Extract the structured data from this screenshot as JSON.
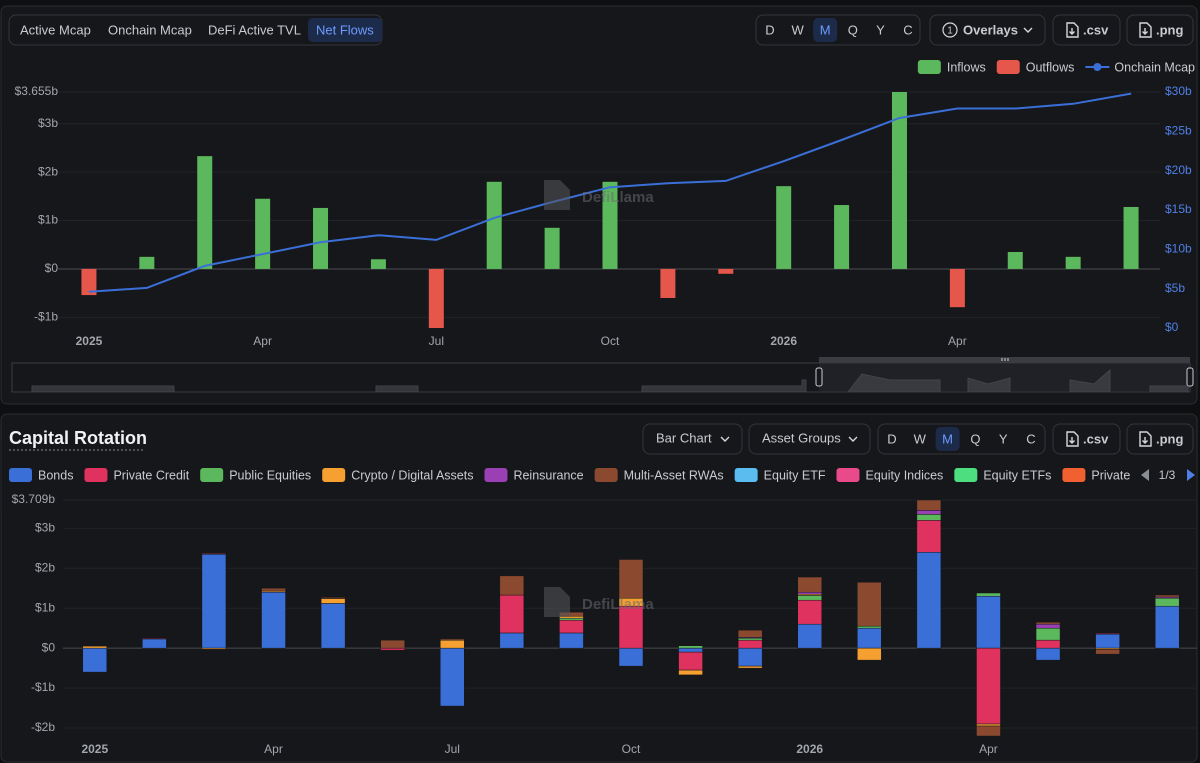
{
  "top_panel": {
    "tabs": [
      "Active Mcap",
      "Onchain Mcap",
      "DeFi Active TVL",
      "Net Flows"
    ],
    "active_tab": 3,
    "periods": [
      "D",
      "W",
      "M",
      "Q",
      "Y",
      "C"
    ],
    "active_period": 2,
    "overlay_count": 1,
    "overlays": "Overlays",
    "csv": ".csv",
    "png": ".png"
  },
  "bottom_panel": {
    "title": "Capital Rotation",
    "chart_type_select": "Bar Chart",
    "group_select": "Asset Groups",
    "periods": [
      "D",
      "W",
      "M",
      "Q",
      "Y",
      "C"
    ],
    "active_period": 2,
    "csv": ".csv",
    "png": ".png",
    "legend_page": "1/3"
  },
  "watermark": "DefiLlama",
  "chart_data": [
    {
      "type": "combo",
      "categories": [
        "2025",
        null,
        null,
        "Apr",
        null,
        null,
        "Jul",
        null,
        null,
        "Oct",
        null,
        null,
        "2026",
        null,
        null,
        "Apr",
        null,
        null,
        null
      ],
      "series": [
        {
          "name": "Inflows",
          "color": "#5cb85c",
          "values": [
            null,
            0.25,
            2.33,
            1.45,
            1.26,
            0.2,
            null,
            1.8,
            0.85,
            1.8,
            null,
            null,
            1.71,
            1.32,
            3.655,
            null,
            0.35,
            0.25,
            1.28
          ]
        },
        {
          "name": "Outflows",
          "color": "#e5564b",
          "values": [
            -0.54,
            null,
            null,
            null,
            null,
            null,
            -1.22,
            null,
            null,
            null,
            -0.6,
            -0.1,
            null,
            null,
            null,
            -0.79,
            null,
            null,
            null
          ]
        },
        {
          "name": "Onchain Mcap",
          "color": "#3b6fd8",
          "axis": "y2",
          "values": [
            4.6,
            5.1,
            7.9,
            9.4,
            10.9,
            11.8,
            11.2,
            14.0,
            16.0,
            17.9,
            18.4,
            18.7,
            21.2,
            23.9,
            26.7,
            27.9,
            27.9,
            28.5,
            29.8
          ]
        }
      ],
      "ylim": [
        -1.22,
        3.655
      ],
      "yticks": [
        {
          "value": -1,
          "label": "-$1b"
        },
        {
          "value": 0,
          "label": "$0"
        },
        {
          "value": 1,
          "label": "$1b"
        },
        {
          "value": 2,
          "label": "$2b"
        },
        {
          "value": 3,
          "label": "$3b"
        },
        {
          "value": 3.655,
          "label": "$3.655b"
        }
      ],
      "y2lim": [
        0,
        30
      ],
      "y2ticks": [
        {
          "value": 0,
          "label": "$0"
        },
        {
          "value": 5,
          "label": "$5b"
        },
        {
          "value": 10,
          "label": "$10b"
        },
        {
          "value": 15,
          "label": "$15b"
        },
        {
          "value": 20,
          "label": "$20b"
        },
        {
          "value": 25,
          "label": "$25b"
        },
        {
          "value": 30,
          "label": "$30b"
        }
      ],
      "grid": true,
      "legend": "top-right"
    },
    {
      "type": "stacked-bar",
      "categories": [
        "2025",
        null,
        null,
        "Apr",
        null,
        null,
        "Jul",
        null,
        null,
        "Oct",
        null,
        null,
        "2026",
        null,
        null,
        "Apr",
        null,
        null,
        null
      ],
      "series": [
        {
          "name": "Bonds",
          "color": "#3b6fd8",
          "values": [
            -0.6,
            0.23,
            2.35,
            1.4,
            1.12,
            null,
            -1.45,
            0.38,
            0.38,
            -0.45,
            -0.1,
            -0.45,
            0.6,
            0.5,
            2.4,
            1.3,
            -0.3,
            0.35,
            1.05
          ]
        },
        {
          "name": "Private Credit",
          "color": "#e0325f",
          "values": [
            null,
            0.02,
            0.02,
            null,
            null,
            -0.05,
            null,
            0.95,
            0.32,
            1.05,
            -0.45,
            0.2,
            0.6,
            null,
            0.8,
            -1.9,
            0.2,
            0.02,
            null
          ]
        },
        {
          "name": "Public Equities",
          "color": "#5cb85c",
          "values": [
            null,
            null,
            null,
            null,
            null,
            null,
            null,
            null,
            0.05,
            null,
            0.06,
            0.05,
            0.12,
            0.05,
            0.15,
            0.08,
            0.3,
            null,
            0.2
          ]
        },
        {
          "name": "Crypto / Digital Assets",
          "color": "#f5a030",
          "values": [
            0.05,
            null,
            -0.03,
            0.03,
            0.12,
            null,
            0.2,
            null,
            0.05,
            0.2,
            -0.12,
            -0.05,
            0.03,
            -0.3,
            null,
            -0.05,
            null,
            -0.03,
            null
          ]
        },
        {
          "name": "Reinsurance",
          "color": "#9b3fb5",
          "values": [
            null,
            null,
            null,
            null,
            null,
            null,
            null,
            null,
            null,
            null,
            null,
            0.02,
            0.05,
            null,
            0.1,
            null,
            0.1,
            null,
            0.03
          ]
        },
        {
          "name": "Multi-Asset RWAs",
          "color": "#8b4a30",
          "values": [
            null,
            null,
            0.02,
            0.07,
            0.03,
            0.2,
            0.03,
            0.48,
            0.1,
            0.97,
            null,
            0.18,
            0.38,
            1.1,
            0.259,
            -0.25,
            0.05,
            -0.12,
            0.05
          ]
        },
        {
          "name": "Equity ETF",
          "color": "#5bbcf0",
          "values": [
            null,
            null,
            null,
            null,
            null,
            null,
            null,
            null,
            null,
            null,
            null,
            null,
            null,
            null,
            null,
            null,
            null,
            null,
            null
          ]
        },
        {
          "name": "Equity Indices",
          "color": "#e84a8a",
          "values": [
            null,
            null,
            null,
            null,
            null,
            null,
            null,
            null,
            null,
            null,
            null,
            null,
            null,
            null,
            null,
            null,
            null,
            null,
            null
          ]
        },
        {
          "name": "Equity ETFs",
          "color": "#4dde80",
          "values": [
            null,
            null,
            null,
            null,
            null,
            null,
            null,
            null,
            null,
            null,
            null,
            null,
            null,
            null,
            null,
            null,
            null,
            null,
            null
          ]
        },
        {
          "name": "Private Equity & V",
          "color": "#f06030",
          "values": [
            null,
            null,
            null,
            null,
            null,
            null,
            null,
            null,
            null,
            null,
            null,
            null,
            null,
            null,
            null,
            null,
            null,
            null,
            null
          ]
        }
      ],
      "ylim": [
        -2.3,
        3.709
      ],
      "yticks": [
        {
          "value": -2,
          "label": "-$2b"
        },
        {
          "value": -1,
          "label": "-$1b"
        },
        {
          "value": 0,
          "label": "$0"
        },
        {
          "value": 1,
          "label": "$1b"
        },
        {
          "value": 2,
          "label": "$2b"
        },
        {
          "value": 3,
          "label": "$3b"
        },
        {
          "value": 3.709,
          "label": "$3.709b"
        }
      ],
      "grid": true,
      "legend": "top-left"
    }
  ]
}
